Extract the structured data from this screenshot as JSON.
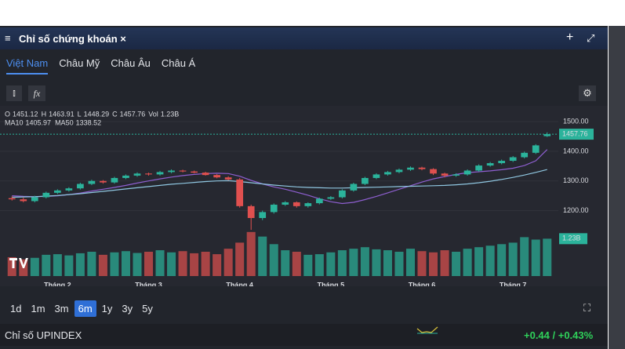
{
  "ui": {
    "panel_title": "Chỉ số chứng khoán ×",
    "tabs": [
      "Việt Nam",
      "Châu Mỹ",
      "Châu Âu",
      "Châu Á"
    ],
    "timeframes": [
      "1d",
      "1m",
      "3m",
      "6m",
      "1y",
      "3y",
      "5y"
    ],
    "active_timeframe": "6m",
    "bottom": {
      "name": "Chỉ số UPINDEX",
      "change": "+0.44 / +0.43%"
    }
  },
  "chart_data": {
    "type": "candlestick",
    "info_labels": [
      "O",
      "H",
      "L",
      "C",
      "Vol"
    ],
    "ma_labels": [
      "MA10",
      "MA50"
    ],
    "last_volume_label": "1.23B",
    "categories": [
      null,
      null,
      null,
      null,
      "Tháng 2",
      null,
      null,
      null,
      null,
      null,
      null,
      null,
      "Tháng 3",
      null,
      null,
      null,
      null,
      null,
      null,
      null,
      "Tháng 4",
      null,
      null,
      null,
      null,
      null,
      null,
      null,
      "Tháng 5",
      null,
      null,
      null,
      null,
      null,
      null,
      null,
      "Tháng 6",
      null,
      null,
      null,
      null,
      null,
      null,
      null,
      "Tháng 7",
      null,
      null,
      null
    ],
    "open": [
      1242,
      1238,
      1232,
      1245,
      1260,
      1268,
      1275,
      1290,
      1300,
      1295,
      1310,
      1318,
      1325,
      1322,
      1330,
      1335,
      1332,
      1328,
      1320,
      1312,
      1305,
      1215,
      1175,
      1195,
      1220,
      1228,
      1215,
      1225,
      1240,
      1245,
      1268,
      1290,
      1310,
      1322,
      1330,
      1338,
      1345,
      1340,
      1325,
      1318,
      1322,
      1335,
      1352,
      1360,
      1368,
      1380,
      1395,
      1451.12
    ],
    "high": [
      1248,
      1244,
      1250,
      1264,
      1272,
      1279,
      1294,
      1304,
      1303,
      1314,
      1322,
      1329,
      1328,
      1334,
      1339,
      1338,
      1335,
      1331,
      1323,
      1316,
      1310,
      1220,
      1200,
      1224,
      1232,
      1231,
      1228,
      1244,
      1249,
      1272,
      1294,
      1314,
      1326,
      1334,
      1342,
      1349,
      1348,
      1343,
      1328,
      1326,
      1339,
      1356,
      1364,
      1372,
      1384,
      1399,
      1424,
      1463.91
    ],
    "low": [
      1234,
      1228,
      1228,
      1241,
      1256,
      1264,
      1271,
      1286,
      1291,
      1291,
      1306,
      1314,
      1318,
      1318,
      1326,
      1329,
      1326,
      1318,
      1309,
      1302,
      1210,
      1135,
      1168,
      1190,
      1216,
      1210,
      1210,
      1221,
      1236,
      1241,
      1264,
      1286,
      1306,
      1318,
      1326,
      1334,
      1336,
      1320,
      1312,
      1314,
      1318,
      1331,
      1348,
      1356,
      1364,
      1376,
      1391,
      1448.29
    ],
    "close": [
      1238,
      1232,
      1245,
      1260,
      1268,
      1275,
      1290,
      1300,
      1295,
      1310,
      1318,
      1325,
      1322,
      1330,
      1335,
      1332,
      1328,
      1320,
      1312,
      1305,
      1215,
      1175,
      1195,
      1220,
      1228,
      1215,
      1225,
      1240,
      1245,
      1268,
      1290,
      1310,
      1322,
      1330,
      1338,
      1345,
      1340,
      1325,
      1318,
      1322,
      1335,
      1352,
      1360,
      1368,
      1380,
      1395,
      1420,
      1457.76
    ],
    "volume": [
      0.62,
      0.55,
      0.6,
      0.7,
      0.72,
      0.68,
      0.75,
      0.8,
      0.7,
      0.78,
      0.82,
      0.76,
      0.8,
      0.85,
      0.78,
      0.82,
      0.75,
      0.8,
      0.72,
      0.9,
      1.1,
      1.45,
      1.3,
      1.05,
      0.85,
      0.8,
      0.7,
      0.72,
      0.78,
      0.85,
      0.9,
      0.95,
      0.88,
      0.85,
      0.8,
      0.9,
      0.82,
      0.78,
      0.85,
      0.8,
      0.9,
      0.95,
      1.0,
      1.05,
      1.1,
      1.28,
      1.2,
      1.23
    ],
    "ma": [
      {
        "name": "MA10",
        "color": "#8e5fd0",
        "values": [
          1250,
          1248,
          1247,
          1248,
          1250,
          1254,
          1259,
          1266,
          1272,
          1278,
          1285,
          1293,
          1300,
          1307,
          1313,
          1318,
          1322,
          1325,
          1326,
          1325,
          1316,
          1302,
          1290,
          1280,
          1272,
          1262,
          1252,
          1240,
          1230,
          1224,
          1228,
          1237,
          1248,
          1260,
          1272,
          1284,
          1296,
          1307,
          1315,
          1322,
          1328,
          1331,
          1334,
          1338,
          1343,
          1352,
          1368,
          1405.97
        ]
      },
      {
        "name": "MA50",
        "color": "#8fc6e0",
        "values": [
          1245,
          1246,
          1247,
          1249,
          1251,
          1254,
          1257,
          1261,
          1265,
          1269,
          1273,
          1277,
          1281,
          1285,
          1289,
          1292,
          1295,
          1298,
          1300,
          1301,
          1298,
          1294,
          1290,
          1286,
          1283,
          1280,
          1278,
          1277,
          1276,
          1276,
          1277,
          1278,
          1279,
          1280,
          1281,
          1282,
          1283,
          1284,
          1285,
          1287,
          1290,
          1294,
          1299,
          1305,
          1312,
          1320,
          1329,
          1338.52
        ]
      }
    ],
    "up_color": "#2bb39b",
    "down_color": "#e0504f",
    "ylim": [
      1130,
      1540
    ],
    "yticks": [
      {
        "value": 1500,
        "label": "1500.00"
      },
      {
        "value": 1400,
        "label": "1400.00"
      },
      {
        "value": 1300,
        "label": "1300.00"
      },
      {
        "value": 1200,
        "label": "1200.00"
      }
    ],
    "vlim": [
      0,
      1.6
    ],
    "grid": true
  }
}
